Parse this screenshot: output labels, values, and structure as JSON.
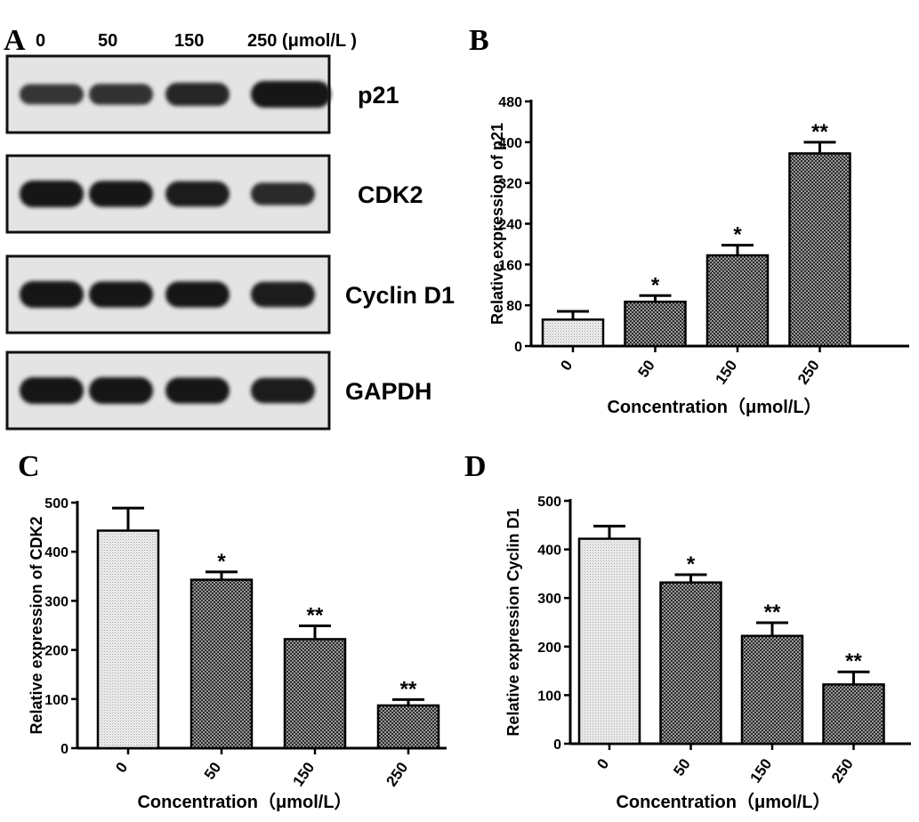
{
  "blot": {
    "letter": "A",
    "lanes": [
      "0",
      "50",
      "150",
      "250 (μmol/L )"
    ],
    "proteins": [
      "p21",
      "CDK2",
      "Cyclin D1",
      "GAPDH"
    ],
    "band_intensity": [
      [
        0.55,
        0.6,
        0.75,
        1.0
      ],
      [
        1.0,
        0.95,
        0.9,
        0.7
      ],
      [
        1.0,
        0.95,
        0.95,
        0.9
      ],
      [
        1.0,
        1.0,
        0.95,
        0.9
      ]
    ]
  },
  "chart_data": [
    {
      "type": "bar",
      "letter": "B",
      "categories": [
        "0",
        "50",
        "150",
        "250"
      ],
      "values": [
        52,
        87,
        178,
        378
      ],
      "errors": [
        16,
        12,
        20,
        22
      ],
      "significance": [
        "",
        "*",
        "*",
        "**"
      ],
      "ylabel": "Relative expression of p21",
      "xlabel": "Concentration（μmol/L）",
      "ylim": [
        0,
        480
      ],
      "yticks": [
        "0",
        "80",
        "160",
        "240",
        "320",
        "400",
        "480"
      ],
      "grid": false,
      "fill_patterns": [
        "light-dots",
        "dense-crosshatch",
        "dense-crosshatch",
        "dense-crosshatch"
      ]
    },
    {
      "type": "bar",
      "letter": "C",
      "categories": [
        "0",
        "50",
        "150",
        "250"
      ],
      "values": [
        443,
        343,
        222,
        87
      ],
      "errors": [
        46,
        16,
        27,
        12
      ],
      "significance": [
        "",
        "*",
        "**",
        "**"
      ],
      "ylabel": "Relative expression of CDK2",
      "xlabel": "Concentration（μmol/L）",
      "ylim": [
        0,
        500
      ],
      "yticks": [
        "0",
        "100",
        "200",
        "300",
        "400",
        "500"
      ],
      "grid": false,
      "fill_patterns": [
        "light-dots",
        "dense-crosshatch",
        "dense-crosshatch",
        "dense-crosshatch"
      ]
    },
    {
      "type": "bar",
      "letter": "D",
      "categories": [
        "0",
        "50",
        "150",
        "250"
      ],
      "values": [
        422,
        332,
        222,
        122
      ],
      "errors": [
        26,
        16,
        27,
        26
      ],
      "significance": [
        "",
        "*",
        "**",
        "**"
      ],
      "ylabel": "Relative expression Cyclin D1",
      "xlabel": "Concentration（μmol/L）",
      "ylim": [
        0,
        500
      ],
      "yticks": [
        "0",
        "100",
        "200",
        "300",
        "400",
        "500"
      ],
      "grid": false,
      "fill_patterns": [
        "light-dots",
        "dense-crosshatch",
        "dense-crosshatch",
        "dense-crosshatch"
      ]
    }
  ]
}
